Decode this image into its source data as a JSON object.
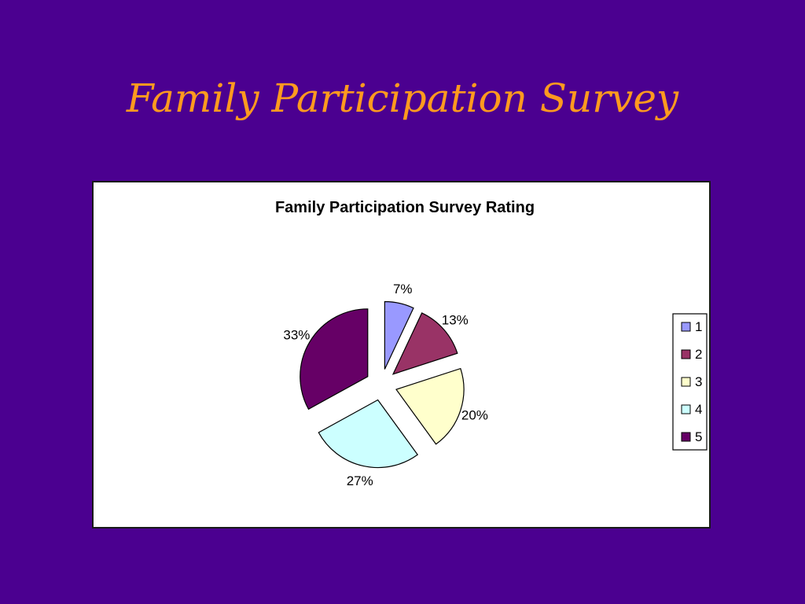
{
  "slide": {
    "title": "Family Participation Survey"
  },
  "chart_data": {
    "type": "pie",
    "title": "Family Participation Survey Rating",
    "exploded": true,
    "legend_position": "right",
    "categories": [
      "1",
      "2",
      "3",
      "4",
      "5"
    ],
    "values": [
      7,
      13,
      20,
      27,
      33
    ],
    "labels": [
      "7%",
      "13%",
      "20%",
      "27%",
      "33%"
    ],
    "colors": [
      "#9999ff",
      "#993366",
      "#ffffcc",
      "#ccffff",
      "#660066"
    ]
  }
}
